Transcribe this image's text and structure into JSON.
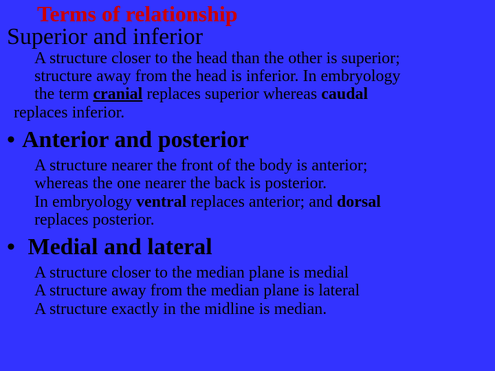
{
  "colors": {
    "background": "#3333ff",
    "title": "#cc0000",
    "text": "#000000"
  },
  "title": "Terms of relationship",
  "section1": {
    "heading": "Superior and inferior",
    "l1": "A structure closer to the head than the other is superior;",
    "l2": "structure away from the head is  inferior. In embryology",
    "l3a": "the term ",
    "l3b": "cranial",
    "l3c": " replaces superior whereas ",
    "l3d": "caudal",
    "l4": "replaces inferior."
  },
  "section2": {
    "heading": "Anterior and posterior",
    "l1": "A structure nearer the front of the body is anterior;",
    "l2": "whereas  the one nearer the back is posterior.",
    "l3a": "In embryology ",
    "l3b": "ventral",
    "l3c": " replaces anterior; and ",
    "l3d": "dorsal",
    "l4": "replaces posterior."
  },
  "section3": {
    "heading": "Medial and lateral",
    "l1": "A structure closer to the median plane is medial",
    "l2": "A structure away from the median plane is lateral",
    "l3": "A structure exactly in the midline is median."
  }
}
